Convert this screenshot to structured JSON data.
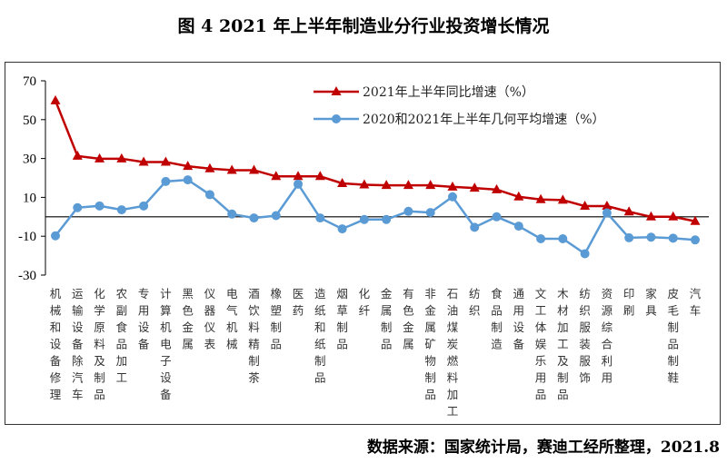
{
  "title": "图 4   2021 年上半年制造业分行业投资增长情况",
  "source": "数据来源：国家统计局，赛迪工经所整理，2021.8",
  "chart_data": {
    "type": "line",
    "title": "图 4   2021 年上半年制造业分行业投资增长情况",
    "xlabel": "",
    "ylabel": "",
    "ylim": [
      -30,
      70
    ],
    "yticks": [
      -30,
      -10,
      10,
      30,
      50,
      70
    ],
    "grid": false,
    "legend_position": "top-right",
    "categories": [
      "机械和设备修理",
      "运输设备除汽车",
      "化学原料及制品",
      "农副食品加工",
      "专用设备",
      "计算机电子设备",
      "黑色金属",
      "仪器仪表",
      "电气机械",
      "酒饮料精制茶",
      "橡塑制品",
      "医药",
      "造纸和纸制品",
      "烟草制品",
      "化纤",
      "金属制品",
      "有色金属",
      "非金属矿物制品",
      "石油煤炭燃料加工",
      "纺织",
      "食品制造",
      "通用设备",
      "文工体娱乐用品",
      "木材加工及制品",
      "纺织服装服饰",
      "资源综合利用",
      "印刷",
      "家具",
      "皮毛制品制鞋",
      "汽车"
    ],
    "series": [
      {
        "name": "2021年上半年同比增速（%）",
        "color": "#C00000",
        "marker": "triangle",
        "values": [
          59.8,
          31.3,
          29.9,
          29.9,
          28.2,
          28.2,
          26,
          24.8,
          24,
          24,
          20.8,
          20.8,
          20.8,
          17.2,
          16.5,
          16.2,
          16.2,
          16.2,
          15.4,
          14.8,
          14,
          10.3,
          8.9,
          8.6,
          5.5,
          5.5,
          2.6,
          0,
          0,
          -2.3
        ]
      },
      {
        "name": "2020和2021年上半年几何平均增速（%）",
        "color": "#5B9BD5",
        "marker": "circle",
        "values": [
          -9.8,
          4.7,
          5.6,
          3.6,
          5.6,
          18.2,
          19,
          11.4,
          1.4,
          -0.6,
          0.6,
          16.8,
          -0.6,
          -6.2,
          -1.4,
          -1.4,
          2.8,
          2.2,
          10.3,
          -5.4,
          0,
          -4.8,
          -11.3,
          -11.3,
          -19,
          2,
          -10.8,
          -10.5,
          -11,
          -11.9
        ]
      }
    ]
  }
}
